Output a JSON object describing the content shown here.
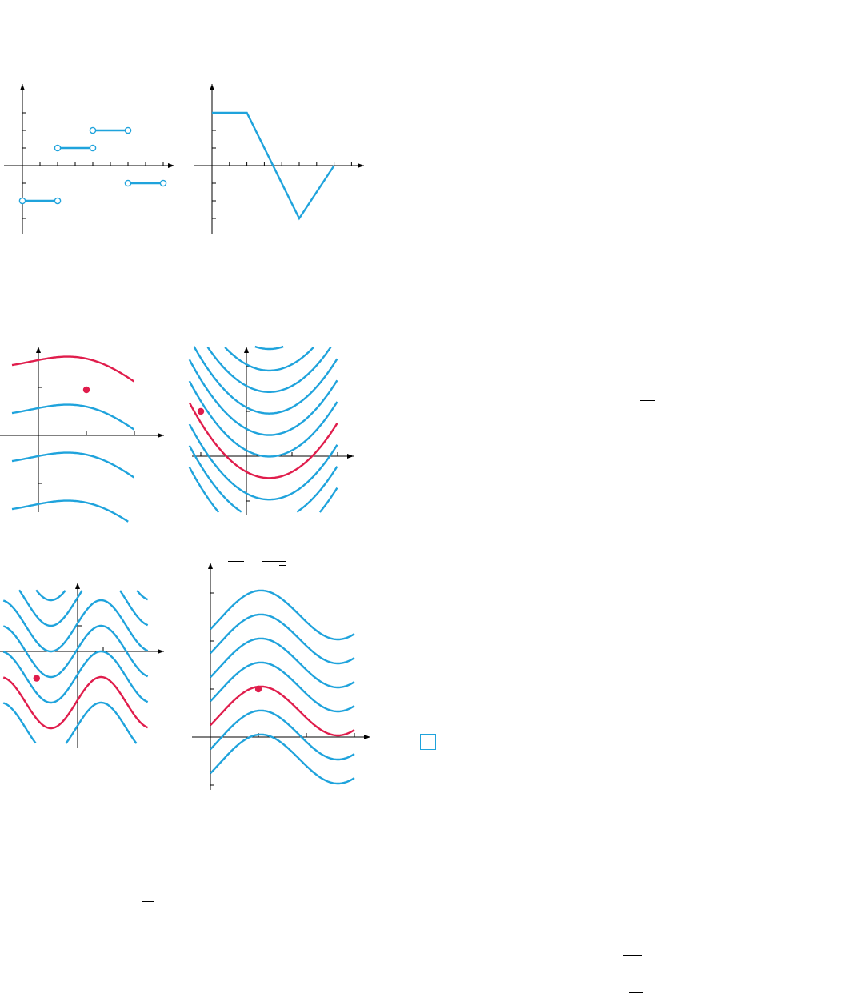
{
  "colors": {
    "curve": "#1fa3dc",
    "highlight": "#e01d4c",
    "axis": "#000000"
  },
  "chart_data": [
    {
      "id": "step-function",
      "type": "line",
      "title": "",
      "xlabel": "",
      "ylabel": "",
      "xlim": [
        0,
        8
      ],
      "ylim": [
        -3,
        3
      ],
      "grid": false,
      "segments": [
        {
          "x": [
            0,
            2
          ],
          "y": [
            -2,
            -2
          ],
          "endpoints": "open"
        },
        {
          "x": [
            2,
            4
          ],
          "y": [
            1,
            1
          ],
          "endpoints": "open"
        },
        {
          "x": [
            4,
            6
          ],
          "y": [
            2,
            2
          ],
          "endpoints": "open"
        },
        {
          "x": [
            6,
            8
          ],
          "y": [
            -1,
            -1
          ],
          "endpoints": "open"
        }
      ]
    },
    {
      "id": "piecewise-linear",
      "type": "line",
      "title": "",
      "xlabel": "",
      "ylabel": "",
      "xlim": [
        0,
        8
      ],
      "ylim": [
        -3,
        3
      ],
      "grid": false,
      "series": [
        {
          "x": [
            0,
            2,
            5,
            7
          ],
          "y": [
            3,
            3,
            -3,
            0
          ]
        }
      ]
    },
    {
      "id": "direction-field-a",
      "type": "line",
      "title": "",
      "xlabel": "",
      "ylabel": "",
      "xlim": [
        0,
        2
      ],
      "ylim": [
        -2,
        2
      ],
      "grid": false,
      "family_offsets": [
        -3,
        -2,
        -1,
        0,
        1,
        2
      ],
      "highlight_offset": 1,
      "highlight_point": [
        1,
        0.95
      ]
    },
    {
      "id": "direction-field-b",
      "type": "line",
      "title": "",
      "xlabel": "",
      "ylabel": "",
      "xlim": [
        -1,
        2
      ],
      "ylim": [
        -1,
        2
      ],
      "grid": false,
      "family_offsets": [
        -3,
        -2,
        -1,
        0,
        1,
        2,
        3,
        4,
        5,
        6
      ],
      "highlight_offset": 0,
      "highlight_point": [
        -1,
        1
      ]
    },
    {
      "id": "direction-field-c",
      "type": "line",
      "title": "",
      "xlabel": "",
      "ylabel": "",
      "xlim": [
        -2,
        2
      ],
      "ylim": [
        -2,
        2
      ],
      "grid": false,
      "family_offsets": [
        -3,
        -2,
        -1,
        0,
        1,
        2,
        3
      ],
      "highlight_offset": -2,
      "highlight_point": [
        -1,
        -1
      ]
    },
    {
      "id": "direction-field-d",
      "type": "line",
      "title": "",
      "xlabel": "",
      "ylabel": "",
      "xlim": [
        0,
        3
      ],
      "ylim": [
        -1,
        3
      ],
      "grid": false,
      "family_offsets": [
        -2,
        -1,
        0,
        1,
        2,
        3,
        4
      ],
      "highlight_offset": 0,
      "highlight_point": [
        1,
        1
      ]
    }
  ]
}
